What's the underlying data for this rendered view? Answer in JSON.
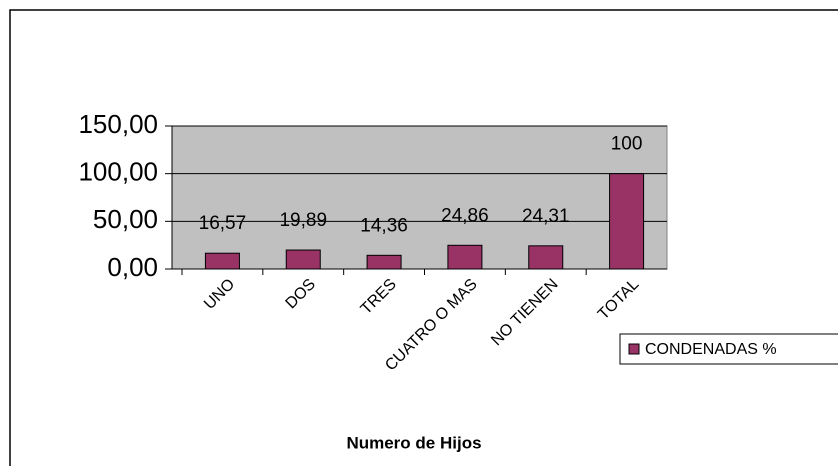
{
  "chart_data": {
    "type": "bar",
    "x_label": "Numero de Hijos",
    "categories": [
      "UNO",
      "DOS",
      "TRES",
      "CUATRO O MAS",
      "NO TIENEN",
      "TOTAL"
    ],
    "series": [
      {
        "name": "CONDENADAS %",
        "color": "#993366",
        "values": [
          16.57,
          19.89,
          14.36,
          24.86,
          24.31,
          100
        ],
        "value_labels": [
          "16,57",
          "19,89",
          "14,36",
          "24,86",
          "24,31",
          "100"
        ]
      }
    ],
    "ylim": [
      0,
      150
    ],
    "yticks": [
      {
        "value": 0,
        "label": "0,00"
      },
      {
        "value": 50,
        "label": "50,00"
      },
      {
        "value": 100,
        "label": "100,00"
      },
      {
        "value": 150,
        "label": "150,00"
      }
    ],
    "grid": true,
    "legend": "right"
  }
}
